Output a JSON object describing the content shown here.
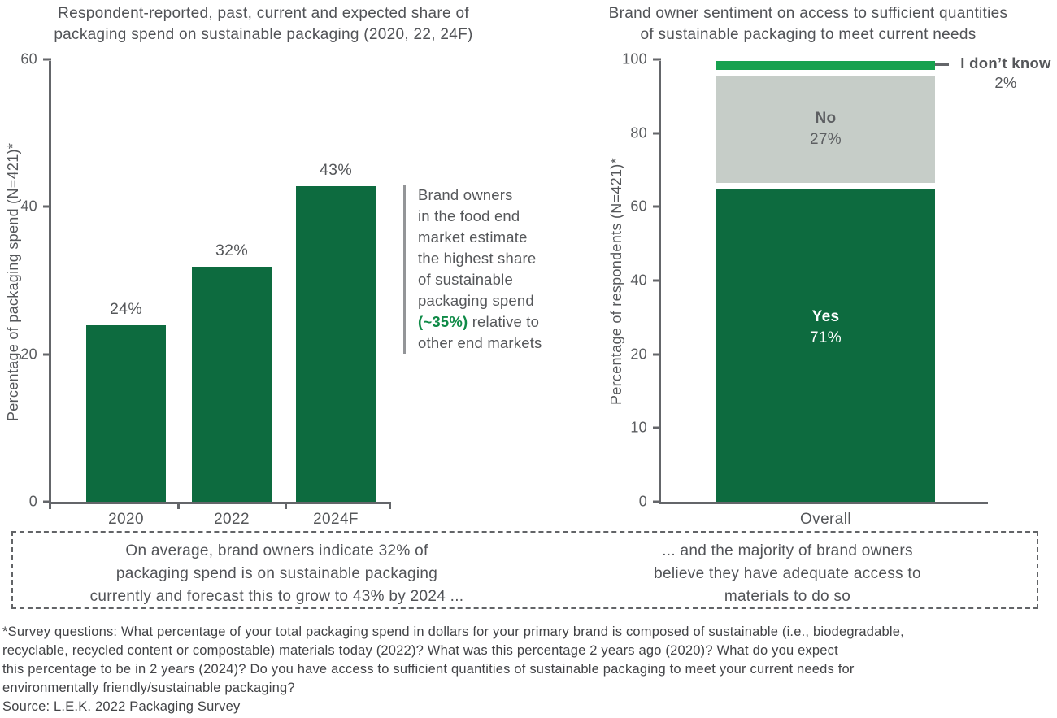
{
  "chart_data": [
    {
      "type": "bar",
      "title": "Respondent-reported, past, current and expected share of packaging spend on sustainable packaging (2020, 22, 24F)",
      "title_lines": [
        "Respondent-reported, past, current and expected share of",
        "packaging spend on sustainable packaging (2020, 22, 24F)"
      ],
      "ylabel": "Percentage of packaging spend (N=421)*",
      "ylim": [
        0,
        60
      ],
      "ytick_labels": [
        "60",
        "40",
        "20",
        "0"
      ],
      "categories": [
        "2020",
        "2022",
        "2024F"
      ],
      "values": [
        24,
        32,
        43
      ],
      "value_labels": [
        "24%",
        "32%",
        "43%"
      ],
      "bar_color": "#0d6b3f",
      "grid": false,
      "legend": "none"
    },
    {
      "type": "bar",
      "stacked": true,
      "title": "Brand owner sentiment on access to sufficient quantities of sustainable packaging to meet current needs",
      "title_lines": [
        "Brand owner sentiment on access to sufficient quantities",
        "of sustainable packaging to meet current needs"
      ],
      "ylabel": "Percentage of respondents (N=421)*",
      "ylim": [
        0,
        100
      ],
      "ytick_labels": [
        "100",
        "80",
        "60",
        "40",
        "20",
        "10",
        "0"
      ],
      "categories": [
        "Overall"
      ],
      "series": [
        {
          "name": "Yes",
          "values": [
            71
          ],
          "label": "71%",
          "color": "#0d6b3f"
        },
        {
          "name": "No",
          "values": [
            27
          ],
          "label": "27%",
          "color": "#c6cdc8"
        },
        {
          "name": "I don’t know",
          "values": [
            2
          ],
          "label": "2%",
          "color": "#17a14f"
        }
      ],
      "grid": false,
      "legend": "right-callout"
    }
  ],
  "annotation": {
    "lines": [
      "Brand owners",
      "in the food end",
      "market estimate",
      "the highest share",
      "of sustainable",
      "packaging spend"
    ],
    "highlight": "(~35%)",
    "highlight_rest": " relative to",
    "last_line": "other end markets"
  },
  "insights": {
    "left_lines": [
      "On average, brand owners indicate 32% of",
      "packaging spend is on sustainable packaging",
      "currently and forecast this to grow to 43% by 2024 ..."
    ],
    "right_lines": [
      "... and the majority of brand owners",
      "believe they have adequate access to",
      "materials to do so"
    ]
  },
  "footnote": {
    "lines": [
      "*Survey questions: What percentage of your total packaging spend in dollars for your primary brand is composed of sustainable (i.e., biodegradable,",
      "recyclable, recycled content or compostable) materials today (2022)? What was this percentage 2 years ago (2020)? What do you expect",
      "this percentage to be in 2 years (2024)? Do you have access to sufficient quantities of sustainable packaging to meet your current needs for",
      "environmentally friendly/sustainable packaging?",
      "Source: L.E.K. 2022 Packaging Survey"
    ]
  }
}
